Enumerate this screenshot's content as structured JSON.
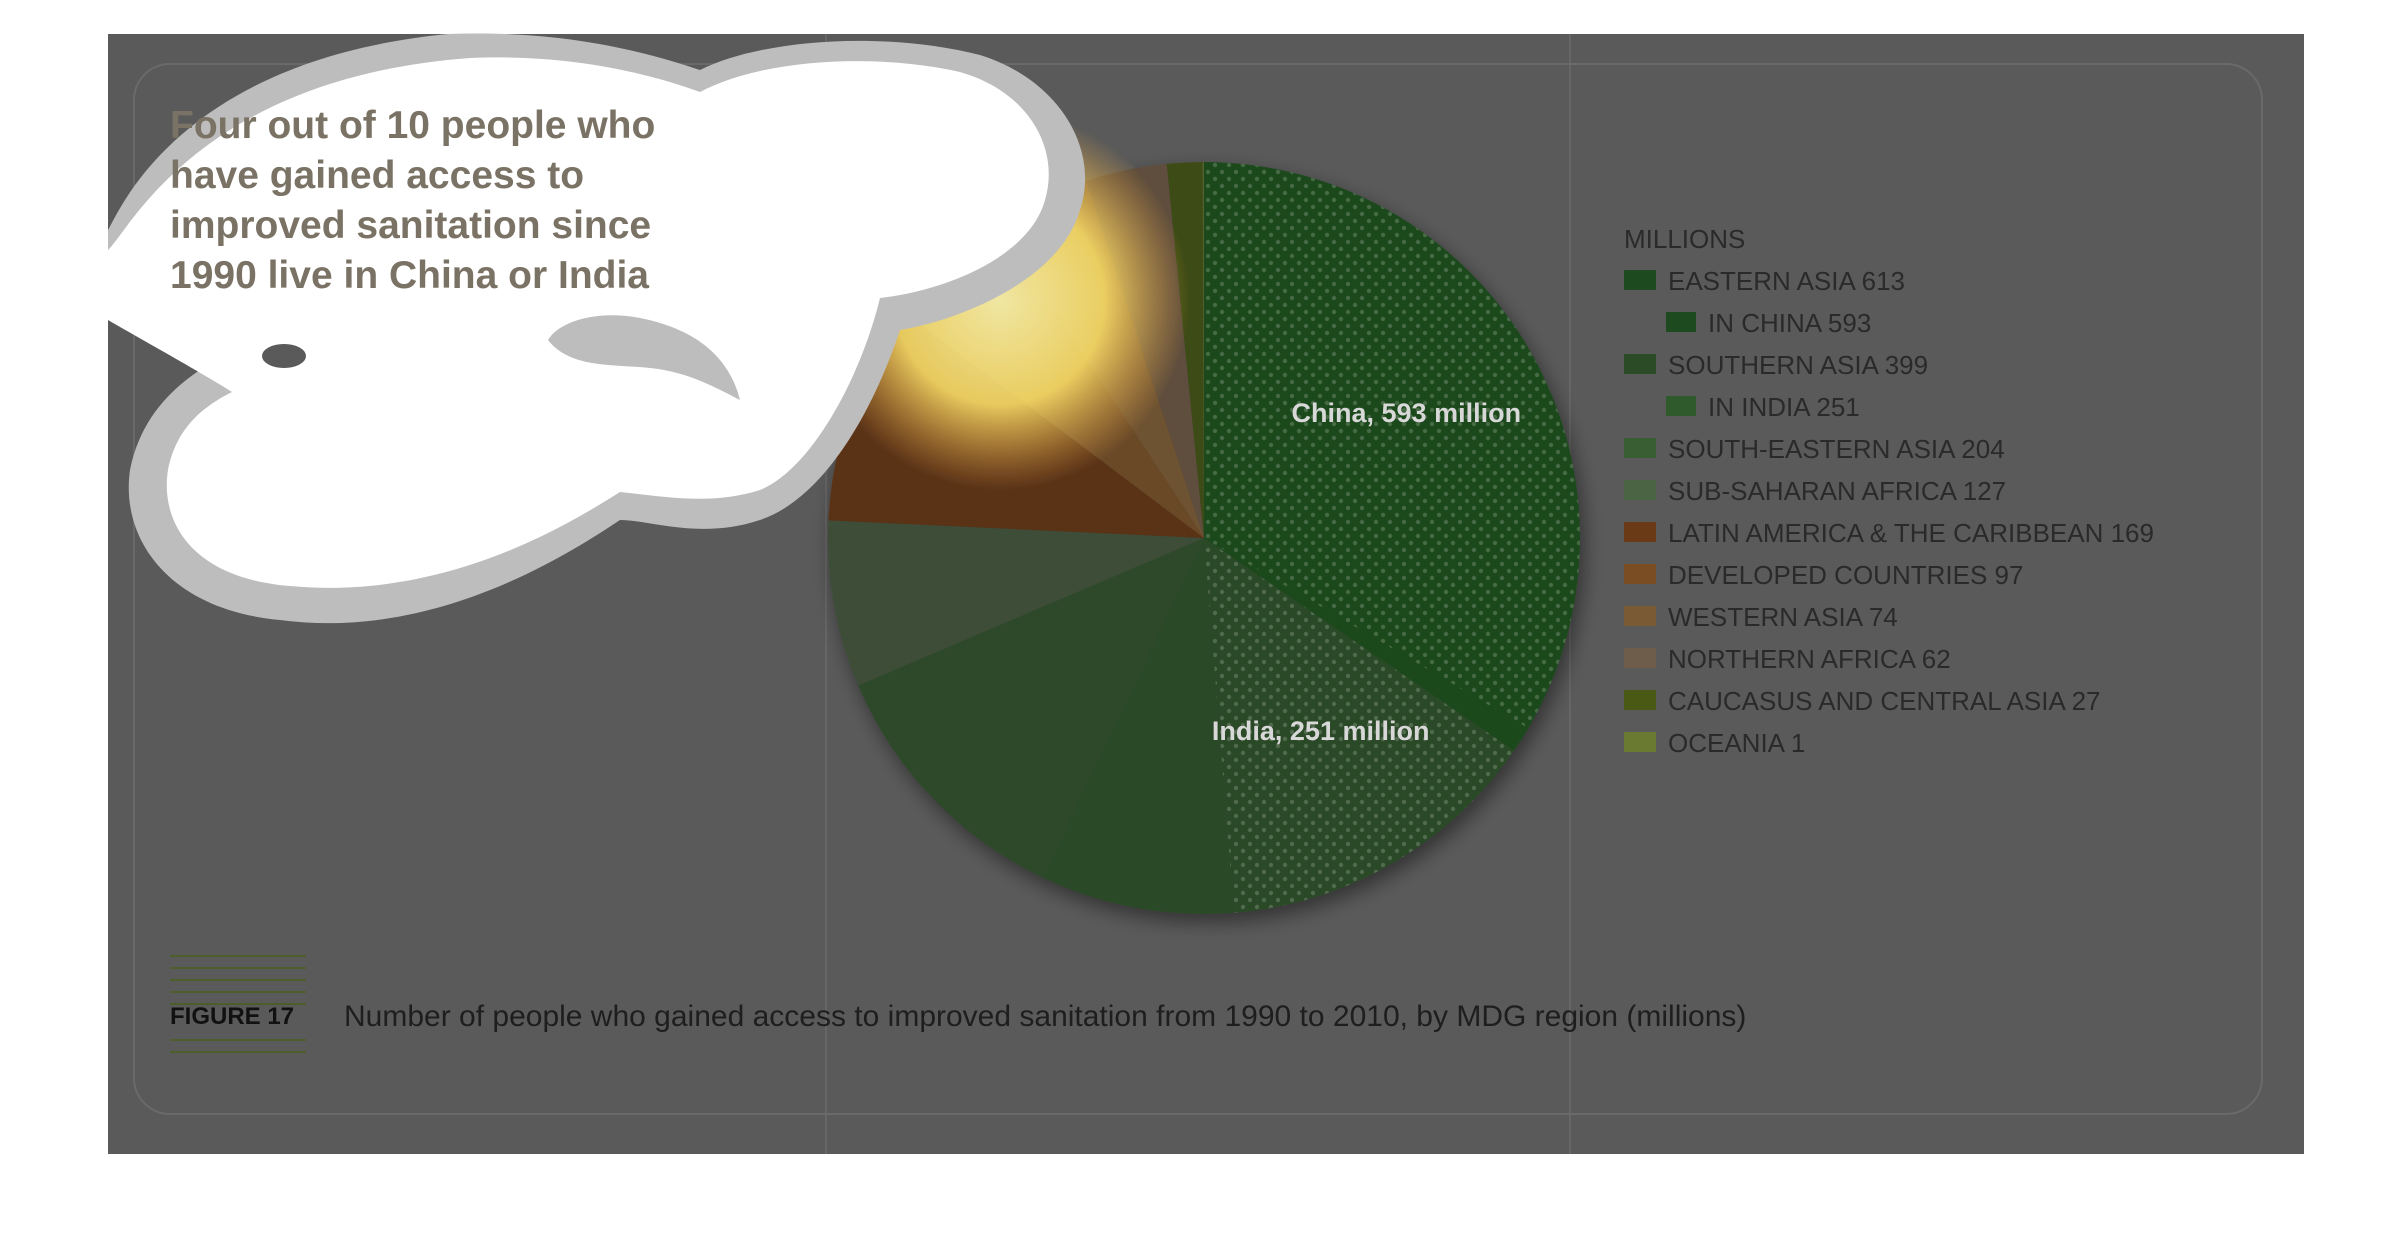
{
  "callout": {
    "lines": [
      "Four out of 10 people who",
      "have gained access to",
      "improved sanitation since",
      "1990 live in China or India"
    ]
  },
  "figure": {
    "label": "FIGURE 17",
    "caption": "Number of people who gained access to improved sanitation from 1990 to 2010, by MDG region (millions)"
  },
  "colors": {
    "background": "#5a5a5a",
    "panel_border": "#6a6a6a",
    "figure_rule": "#4e5e2a",
    "slice_label_text": "#d8d8d8"
  },
  "chart_data": {
    "type": "pie",
    "title": "",
    "units_label": "MILLIONS",
    "slices": [
      {
        "label": "EASTERN ASIA 613",
        "value": 613,
        "color": "#1e4a1f",
        "sub": [
          {
            "label": "IN CHINA 593",
            "value": 593,
            "annotation": "China, 593 million",
            "pattern": "dots"
          }
        ]
      },
      {
        "label": "SOUTHERN ASIA 399",
        "value": 399,
        "color": "#2b4a26",
        "sub": [
          {
            "label": "IN INDIA 251",
            "value": 251,
            "annotation": "India, 251 million",
            "pattern": "dots"
          }
        ]
      },
      {
        "label": "SOUTH-EASTERN ASIA 204",
        "value": 204,
        "color": "#2f4a2a"
      },
      {
        "label": "SUB-SAHARAN AFRICA 127",
        "value": 127,
        "color": "#3c4d37"
      },
      {
        "label": "LATIN AMERICA & THE CARIBBEAN 169",
        "value": 169,
        "color": "#5a3318"
      },
      {
        "label": "DEVELOPED COUNTRIES 97",
        "value": 97,
        "color": "#6b4a28"
      },
      {
        "label": "WESTERN ASIA 74",
        "value": 74,
        "color": "#6e5232"
      },
      {
        "label": "NORTHERN AFRICA 62",
        "value": 62,
        "color": "#5e4d3c"
      },
      {
        "label": "CAUCASUS AND CENTRAL ASIA 27",
        "value": 27,
        "color": "#3d4b15"
      },
      {
        "label": "OCEANIA 1",
        "value": 1,
        "color": "#55632a"
      }
    ],
    "legend": [
      {
        "label": "MILLIONS",
        "header": true
      },
      {
        "label": "EASTERN ASIA 613",
        "color": "#1e4a1f",
        "indent": false
      },
      {
        "label": "IN CHINA 593",
        "color": "#1e4a1f",
        "indent": true
      },
      {
        "label": "SOUTHERN ASIA 399",
        "color": "#2b4a26",
        "indent": false
      },
      {
        "label": "IN INDIA 251",
        "color": "#2f5a2c",
        "indent": true
      },
      {
        "label": "SOUTH-EASTERN ASIA 204",
        "color": "#3a5e34",
        "indent": false
      },
      {
        "label": "SUB-SAHARAN AFRICA 127",
        "color": "#4a6444",
        "indent": false
      },
      {
        "label": "LATIN AMERICA & THE CARIBBEAN 169",
        "color": "#6a3a16",
        "indent": false
      },
      {
        "label": "DEVELOPED COUNTRIES 97",
        "color": "#7a4e22",
        "indent": false
      },
      {
        "label": "WESTERN ASIA 74",
        "color": "#7a5a34",
        "indent": false
      },
      {
        "label": "NORTHERN AFRICA 62",
        "color": "#6e5d4a",
        "indent": false
      },
      {
        "label": "CAUCASUS AND CENTRAL ASIA 27",
        "color": "#4a5a14",
        "indent": false
      },
      {
        "label": "OCEANIA 1",
        "color": "#6a7a30",
        "indent": false
      }
    ],
    "legend_position": "right",
    "grid": false
  }
}
